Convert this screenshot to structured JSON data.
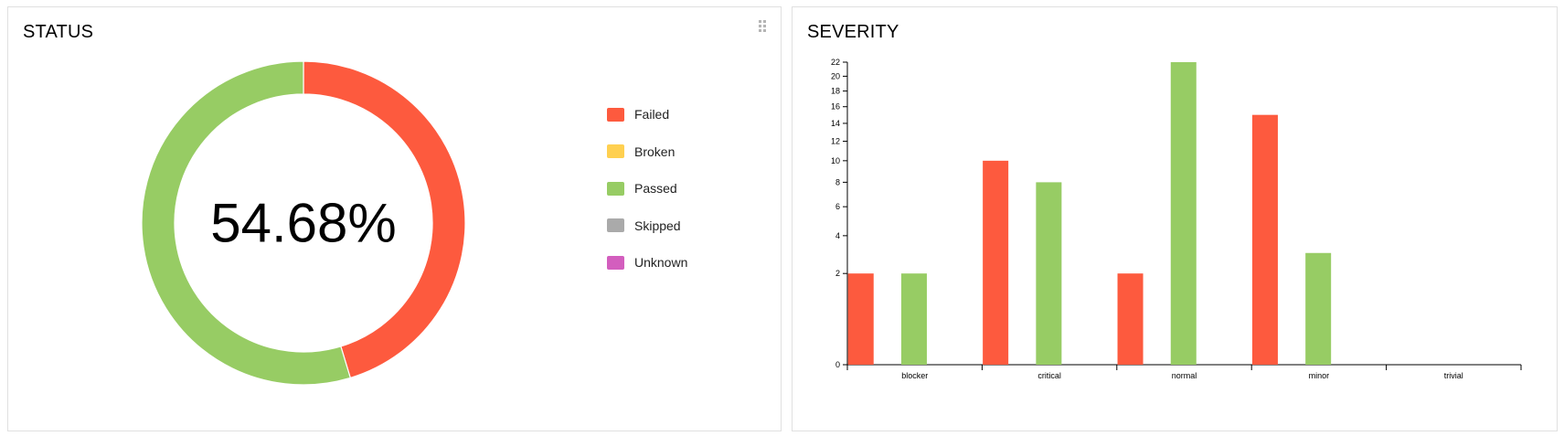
{
  "status_widget": {
    "title": "STATUS",
    "center_text": "54.68%",
    "legend": [
      {
        "label": "Failed",
        "color": "#fd5a3e"
      },
      {
        "label": "Broken",
        "color": "#ffd050"
      },
      {
        "label": "Passed",
        "color": "#97cc64"
      },
      {
        "label": "Skipped",
        "color": "#aaaaaa"
      },
      {
        "label": "Unknown",
        "color": "#d35ebe"
      }
    ]
  },
  "severity_widget": {
    "title": "SEVERITY"
  },
  "chart_data": [
    {
      "type": "pie",
      "title": "STATUS",
      "donut": true,
      "center_label": "54.68%",
      "slices": [
        {
          "label": "Failed",
          "value": 45.32,
          "color": "#fd5a3e"
        },
        {
          "label": "Broken",
          "value": 0,
          "color": "#ffd050"
        },
        {
          "label": "Passed",
          "value": 54.68,
          "color": "#97cc64"
        },
        {
          "label": "Skipped",
          "value": 0,
          "color": "#aaaaaa"
        },
        {
          "label": "Unknown",
          "value": 0,
          "color": "#d35ebe"
        }
      ],
      "legend_position": "right"
    },
    {
      "type": "bar",
      "title": "SEVERITY",
      "categories": [
        "blocker",
        "critical",
        "normal",
        "minor",
        "trivial"
      ],
      "series": [
        {
          "values": [
            2,
            10,
            2,
            15,
            0
          ],
          "color": "#fd5a3e"
        },
        {
          "values": [
            2,
            8,
            22,
            3,
            0
          ],
          "color": "#97cc64"
        }
      ],
      "y_scale": "sqrt",
      "ylim": [
        0,
        22
      ],
      "yticks": [
        0,
        2,
        4,
        6,
        8,
        10,
        12,
        14,
        16,
        18,
        20,
        22
      ],
      "grid": false
    }
  ]
}
